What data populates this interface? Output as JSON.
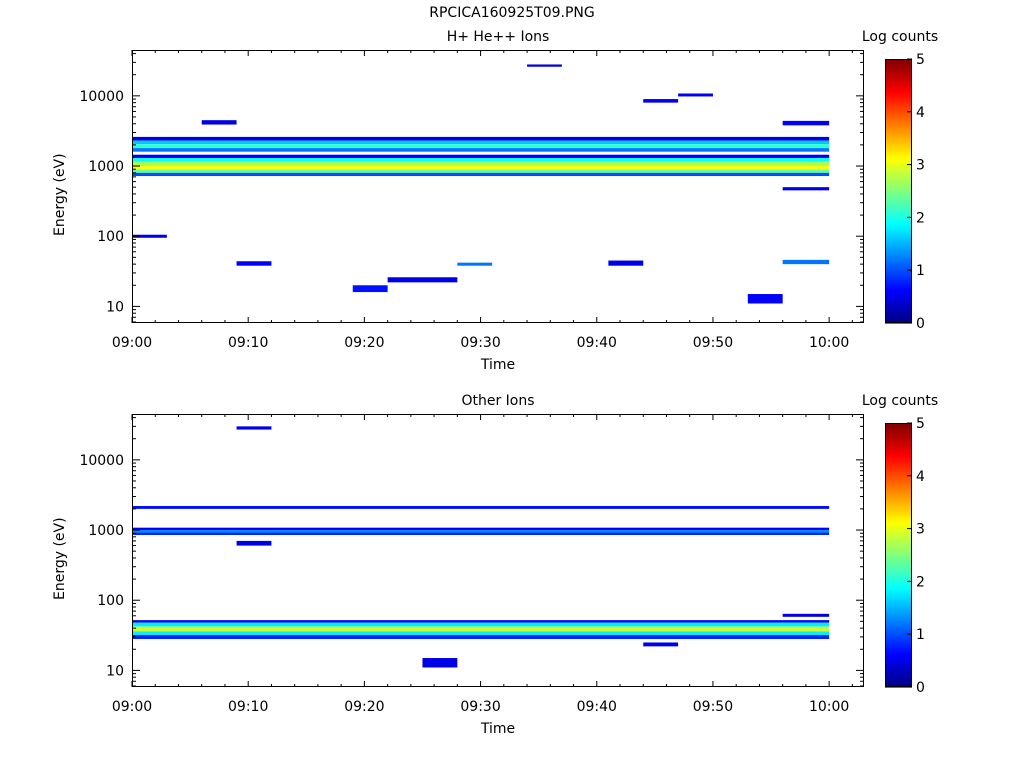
{
  "figure_title": "RPCICA160925T09.PNG",
  "colorbar": {
    "label": "Log counts",
    "ticks": [
      "0",
      "1",
      "2",
      "3",
      "4",
      "5"
    ],
    "range": [
      0,
      5
    ]
  },
  "chart_data": [
    {
      "type": "heatmap",
      "title": "H+ He++ Ions",
      "xlabel": "Time",
      "ylabel": "Energy (eV)",
      "xlim": [
        "09:00",
        "10:03"
      ],
      "ylim": [
        5.8,
        45000
      ],
      "yscale": "log",
      "x_ticks": [
        "09:00",
        "09:10",
        "09:20",
        "09:30",
        "09:40",
        "09:50",
        "10:00"
      ],
      "y_ticks": [
        "10",
        "100",
        "1000",
        "10000"
      ],
      "grid": false,
      "colorbar_label": "Log counts",
      "clim": [
        0,
        5
      ],
      "cells": [
        {
          "t0": "09:00",
          "t1": "10:00",
          "e0": 2300,
          "e1": 2600,
          "v": 0.5
        },
        {
          "t0": "09:00",
          "t1": "10:00",
          "e0": 2050,
          "e1": 2300,
          "v": 1.6
        },
        {
          "t0": "09:00",
          "t1": "10:00",
          "e0": 1800,
          "e1": 2050,
          "v": 2.1
        },
        {
          "t0": "09:00",
          "t1": "10:00",
          "e0": 1600,
          "e1": 1800,
          "v": 1.2
        },
        {
          "t0": "09:00",
          "t1": "10:00",
          "e0": 1300,
          "e1": 1450,
          "v": 0.6
        },
        {
          "t0": "09:00",
          "t1": "10:00",
          "e0": 1150,
          "e1": 1300,
          "v": 1.9
        },
        {
          "t0": "09:00",
          "t1": "10:00",
          "e0": 1000,
          "e1": 1150,
          "v": 2.7
        },
        {
          "t0": "09:00",
          "t1": "10:00",
          "e0": 880,
          "e1": 1000,
          "v": 3.1
        },
        {
          "t0": "09:00",
          "t1": "10:00",
          "e0": 800,
          "e1": 880,
          "v": 2.3
        },
        {
          "t0": "09:00",
          "t1": "10:00",
          "e0": 720,
          "e1": 800,
          "v": 1.0
        },
        {
          "t0": "09:00",
          "t1": "09:03",
          "e0": 95,
          "e1": 105,
          "v": 0.5
        },
        {
          "t0": "09:06",
          "t1": "09:09",
          "e0": 3900,
          "e1": 4500,
          "v": 0.5
        },
        {
          "t0": "09:09",
          "t1": "09:12",
          "e0": 38,
          "e1": 44,
          "v": 0.6
        },
        {
          "t0": "09:19",
          "t1": "09:22",
          "e0": 16,
          "e1": 20,
          "v": 0.7
        },
        {
          "t0": "09:22",
          "t1": "09:28",
          "e0": 22,
          "e1": 26,
          "v": 0.5
        },
        {
          "t0": "09:28",
          "t1": "09:31",
          "e0": 38,
          "e1": 42,
          "v": 1.2
        },
        {
          "t0": "09:34",
          "t1": "09:37",
          "e0": 26000,
          "e1": 28000,
          "v": 0.5
        },
        {
          "t0": "09:41",
          "t1": "09:44",
          "e0": 38,
          "e1": 45,
          "v": 0.5
        },
        {
          "t0": "09:44",
          "t1": "09:47",
          "e0": 8000,
          "e1": 9000,
          "v": 0.6
        },
        {
          "t0": "09:47",
          "t1": "09:50",
          "e0": 9800,
          "e1": 10800,
          "v": 0.6
        },
        {
          "t0": "09:53",
          "t1": "09:56",
          "e0": 11,
          "e1": 15,
          "v": 0.6
        },
        {
          "t0": "09:56",
          "t1": "10:00",
          "e0": 3800,
          "e1": 4400,
          "v": 0.6
        },
        {
          "t0": "09:56",
          "t1": "10:00",
          "e0": 40,
          "e1": 46,
          "v": 1.2
        },
        {
          "t0": "09:56",
          "t1": "10:00",
          "e0": 450,
          "e1": 500,
          "v": 0.5
        }
      ]
    },
    {
      "type": "heatmap",
      "title": "Other Ions",
      "xlabel": "Time",
      "ylabel": "Energy (eV)",
      "xlim": [
        "09:00",
        "10:03"
      ],
      "ylim": [
        5.8,
        45000
      ],
      "yscale": "log",
      "x_ticks": [
        "09:00",
        "09:10",
        "09:20",
        "09:30",
        "09:40",
        "09:50",
        "10:00"
      ],
      "y_ticks": [
        "10",
        "100",
        "1000",
        "10000"
      ],
      "grid": false,
      "colorbar_label": "Log counts",
      "clim": [
        0,
        5
      ],
      "cells": [
        {
          "t0": "09:00",
          "t1": "10:00",
          "e0": 2000,
          "e1": 2200,
          "v": 0.7
        },
        {
          "t0": "09:00",
          "t1": "10:00",
          "e0": 1000,
          "e1": 1080,
          "v": 0.6
        },
        {
          "t0": "09:00",
          "t1": "10:00",
          "e0": 920,
          "e1": 1000,
          "v": 1.3
        },
        {
          "t0": "09:00",
          "t1": "10:00",
          "e0": 850,
          "e1": 920,
          "v": 0.8
        },
        {
          "t0": "09:00",
          "t1": "10:00",
          "e0": 48,
          "e1": 52,
          "v": 0.6
        },
        {
          "t0": "09:00",
          "t1": "10:00",
          "e0": 42,
          "e1": 48,
          "v": 1.8
        },
        {
          "t0": "09:00",
          "t1": "10:00",
          "e0": 36,
          "e1": 42,
          "v": 2.9
        },
        {
          "t0": "09:00",
          "t1": "10:00",
          "e0": 32,
          "e1": 36,
          "v": 1.8
        },
        {
          "t0": "09:00",
          "t1": "10:00",
          "e0": 28,
          "e1": 32,
          "v": 0.8
        },
        {
          "t0": "09:09",
          "t1": "09:12",
          "e0": 27000,
          "e1": 30000,
          "v": 0.5
        },
        {
          "t0": "09:09",
          "t1": "09:12",
          "e0": 600,
          "e1": 700,
          "v": 0.5
        },
        {
          "t0": "09:25",
          "t1": "09:28",
          "e0": 11,
          "e1": 15,
          "v": 0.5
        },
        {
          "t0": "09:44",
          "t1": "09:47",
          "e0": 22,
          "e1": 25,
          "v": 0.5
        },
        {
          "t0": "09:56",
          "t1": "10:00",
          "e0": 58,
          "e1": 64,
          "v": 0.5
        }
      ]
    }
  ]
}
